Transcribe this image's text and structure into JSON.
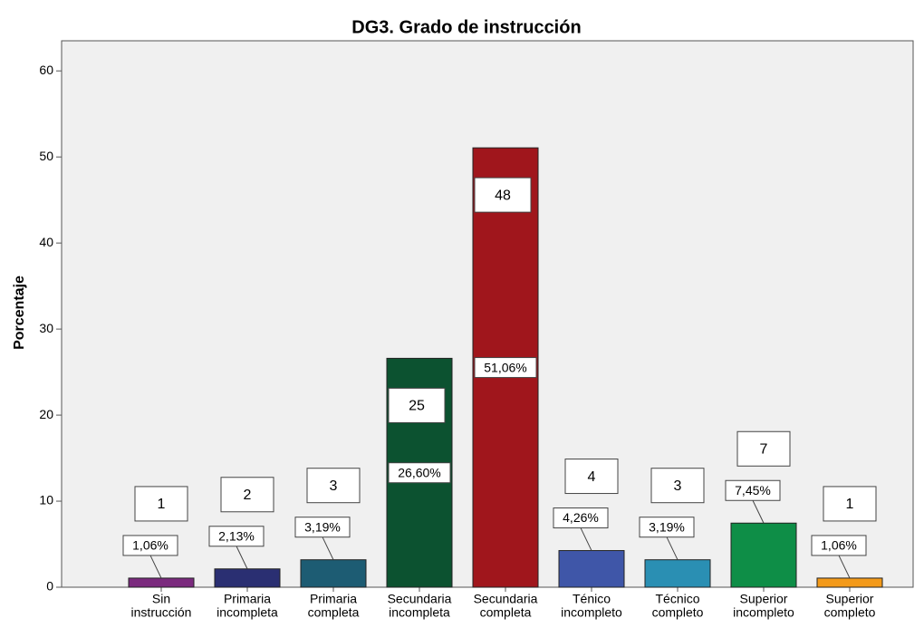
{
  "chart_data": {
    "type": "bar",
    "title": "DG3. Grado de instrucción",
    "y_label": "Porcentaje",
    "categories": [
      [
        "Sin",
        "instrucción"
      ],
      [
        "Primaria",
        "incompleta"
      ],
      [
        "Primaria",
        "completa"
      ],
      [
        "Secundaria",
        "incompleta"
      ],
      [
        "Secundaria",
        "completa"
      ],
      [
        "Ténico",
        "incompleto"
      ],
      [
        "Técnico",
        "completo"
      ],
      [
        "Superior",
        "incompleto"
      ],
      [
        "Superior",
        "completo"
      ]
    ],
    "values": [
      1.06,
      2.13,
      3.19,
      26.6,
      51.06,
      4.26,
      3.19,
      7.45,
      1.06
    ],
    "value_labels": [
      "1,06%",
      "2,13%",
      "3,19%",
      "26,60%",
      "51,06%",
      "4,26%",
      "3,19%",
      "7,45%",
      "1,06%"
    ],
    "annotations": [
      "1",
      "2",
      "3",
      "25",
      "48",
      "4",
      "3",
      "7",
      "1"
    ],
    "colors": [
      "#7b2a7e",
      "#2a2f72",
      "#1d5c73",
      "#0c5230",
      "#a0161c",
      "#3f56a8",
      "#2a8fb3",
      "#0e8e47",
      "#f39a1a"
    ],
    "ylim": [
      0,
      63.5
    ],
    "yticks": [
      0,
      10,
      20,
      30,
      40,
      50,
      60
    ]
  }
}
